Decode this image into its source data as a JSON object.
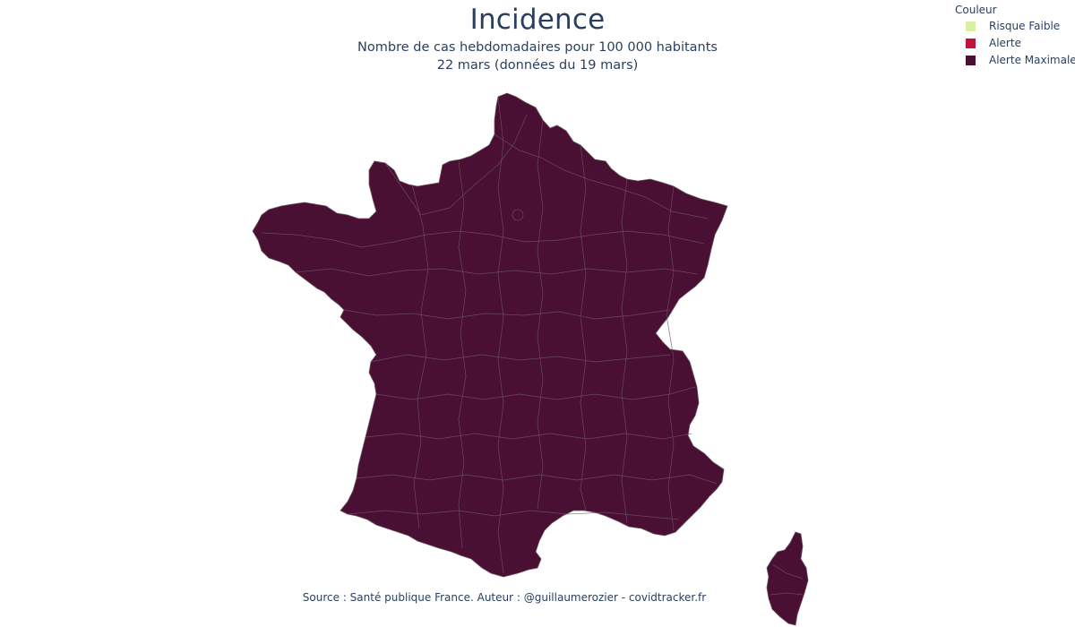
{
  "title": "Incidence",
  "subtitle_line1": "Nombre de cas hebdomadaires pour 100 000 habitants",
  "subtitle_line2": "22 mars (données du 19 mars)",
  "source": "Source : Santé publique France. Auteur : @guillaumerozier - covidtracker.fr",
  "legend": {
    "title": "Couleur",
    "items": [
      {
        "label": "Risque Faible",
        "color": "#d9f0a3"
      },
      {
        "label": "Alerte",
        "color": "#c2113a"
      },
      {
        "label": "Alerte Maximale",
        "color": "#4a1033"
      }
    ]
  },
  "map": {
    "fill_color": "#4a1033",
    "border_color": "#6b5560",
    "regions": [
      "France métropolitaine",
      "Corse"
    ]
  }
}
